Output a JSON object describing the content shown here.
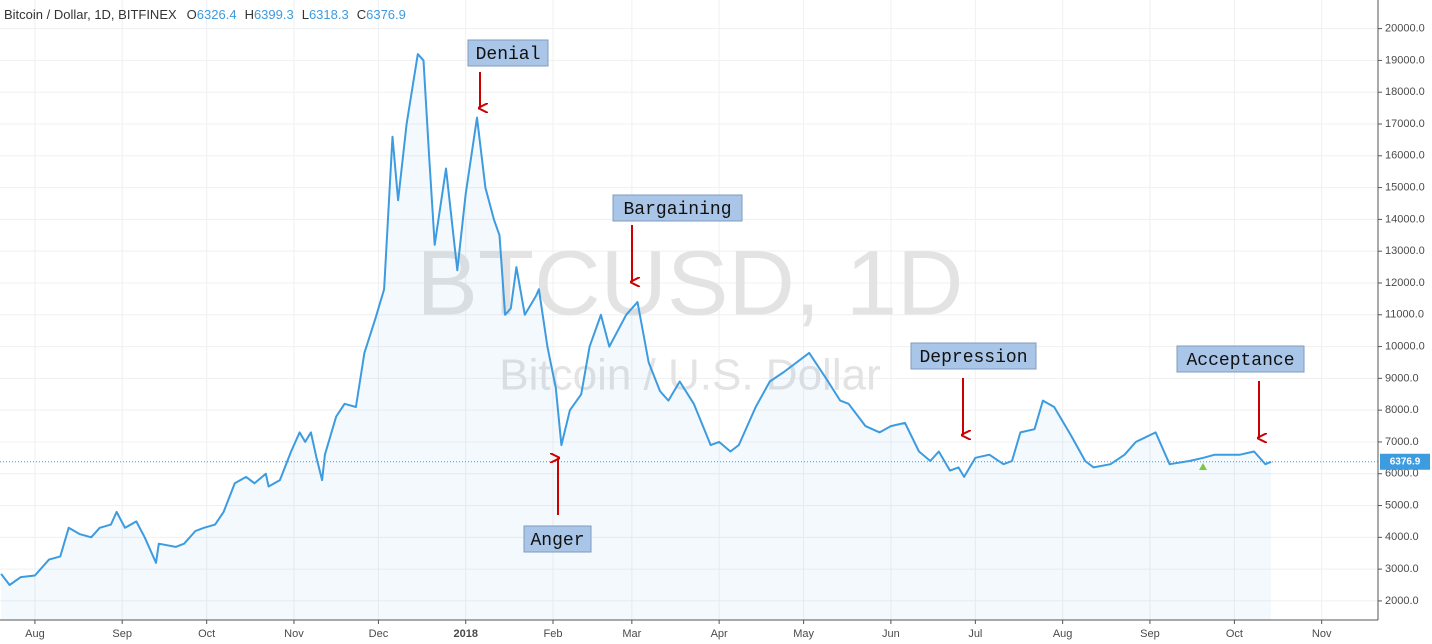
{
  "chart_data": {
    "type": "line",
    "title": "Bitcoin / Dollar, 1D, BITFINEX",
    "ohlc": [
      {
        "label": "O",
        "value": 6326.4
      },
      {
        "label": "H",
        "value": 6399.3
      },
      {
        "label": "L",
        "value": 6318.3
      },
      {
        "label": "C",
        "value": 6376.9
      }
    ],
    "watermark": [
      "BTCUSD, 1D",
      "Bitcoin / U.S. Dollar"
    ],
    "annotations": [
      "Denial",
      "Anger",
      "Bargaining",
      "Depression",
      "Acceptance"
    ],
    "x": [
      -12,
      -9,
      -5,
      0,
      5,
      9,
      11,
      12,
      16,
      20,
      23,
      27,
      29,
      32,
      36,
      39,
      43,
      44,
      50,
      53,
      57,
      60,
      64,
      67,
      71,
      75,
      78,
      82,
      83,
      87,
      91,
      94,
      96,
      98,
      100,
      102,
      103,
      107,
      110,
      114,
      117,
      121,
      124,
      127,
      129,
      132,
      136,
      138,
      140,
      142,
      146,
      150,
      153,
      157,
      160,
      163,
      165,
      167,
      169,
      171,
      174,
      178,
      179,
      182,
      185,
      187,
      190,
      194,
      197,
      201,
      204,
      210,
      214,
      218,
      222,
      225,
      229,
      234,
      240,
      243,
      247,
      250,
      256,
      261,
      266,
      275,
      281,
      286,
      289,
      295,
      300,
      304,
      309,
      314,
      318,
      321,
      325,
      328,
      330,
      334,
      339,
      344,
      347,
      350,
      355,
      358,
      362,
      368,
      373,
      376,
      382,
      387,
      391,
      398,
      403,
      410,
      415,
      419,
      428,
      433,
      437,
      439
    ],
    "series": [
      {
        "name": "BTCUSD",
        "color": "#3d9be0",
        "values": [
          2850,
          2500,
          2750,
          2800,
          3300,
          3400,
          4000,
          4300,
          4100,
          4000,
          4300,
          4400,
          4800,
          4300,
          4500,
          4000,
          3200,
          3800,
          3700,
          3800,
          4200,
          4300,
          4400,
          4800,
          5700,
          5900,
          5700,
          6000,
          5600,
          5800,
          6700,
          7300,
          7000,
          7300,
          6500,
          5800,
          6600,
          7800,
          8200,
          8100,
          9800,
          10900,
          11800,
          16600,
          14600,
          17000,
          19200,
          19000,
          16000,
          13200,
          15600,
          12400,
          14800,
          17200,
          15000,
          14000,
          13500,
          11000,
          11200,
          12500,
          11000,
          11600,
          11800,
          10000,
          8700,
          6900,
          8000,
          8500,
          10000,
          11000,
          10000,
          11000,
          11400,
          9500,
          8600,
          8300,
          8900,
          8200,
          6900,
          7000,
          6700,
          6900,
          8100,
          8900,
          9200,
          9800,
          9000,
          8300,
          8200,
          7500,
          7300,
          7500,
          7600,
          6700,
          6400,
          6700,
          6100,
          6200,
          5900,
          6500,
          6600,
          6300,
          6400,
          7300,
          7400,
          8300,
          8100,
          7200,
          6400,
          6200,
          6300,
          6600,
          7000,
          7300,
          6300,
          6400,
          6500,
          6600,
          6600,
          6700,
          6300,
          6377
        ]
      }
    ],
    "xlim": [
      -12.4,
      477
    ],
    "xticks": [
      {
        "value": 0,
        "label": "Aug"
      },
      {
        "value": 31,
        "label": "Sep"
      },
      {
        "value": 61,
        "label": "Oct"
      },
      {
        "value": 92,
        "label": "Nov"
      },
      {
        "value": 122,
        "label": "Dec"
      },
      {
        "value": 153,
        "label": "2018"
      },
      {
        "value": 184,
        "label": "Feb"
      },
      {
        "value": 212,
        "label": "Mar"
      },
      {
        "value": 243,
        "label": "Apr"
      },
      {
        "value": 273,
        "label": "May"
      },
      {
        "value": 304,
        "label": "Jun"
      },
      {
        "value": 334,
        "label": "Jul"
      },
      {
        "value": 365,
        "label": "Aug"
      },
      {
        "value": 396,
        "label": "Sep"
      },
      {
        "value": 426,
        "label": "Oct"
      },
      {
        "value": 457,
        "label": "Nov"
      }
    ],
    "ylim": [
      1400,
      20900
    ],
    "yticks": [
      {
        "value": 2000,
        "label": "2000.0"
      },
      {
        "value": 3000,
        "label": "3000.0"
      },
      {
        "value": 4000,
        "label": "4000.0"
      },
      {
        "value": 5000,
        "label": "5000.0"
      },
      {
        "value": 6000,
        "label": "6000.0"
      },
      {
        "value": 7000,
        "label": "7000.0"
      },
      {
        "value": 8000,
        "label": "8000.0"
      },
      {
        "value": 9000,
        "label": "9000.0"
      },
      {
        "value": 10000,
        "label": "10000.0"
      },
      {
        "value": 11000,
        "label": "11000.0"
      },
      {
        "value": 12000,
        "label": "12000.0"
      },
      {
        "value": 13000,
        "label": "13000.0"
      },
      {
        "value": 14000,
        "label": "14000.0"
      },
      {
        "value": 15000,
        "label": "15000.0"
      },
      {
        "value": 16000,
        "label": "16000.0"
      },
      {
        "value": 17000,
        "label": "17000.0"
      },
      {
        "value": 18000,
        "label": "18000.0"
      },
      {
        "value": 19000,
        "label": "19000.0"
      },
      {
        "value": 20000,
        "label": "20000.0"
      }
    ],
    "grid": true
  }
}
